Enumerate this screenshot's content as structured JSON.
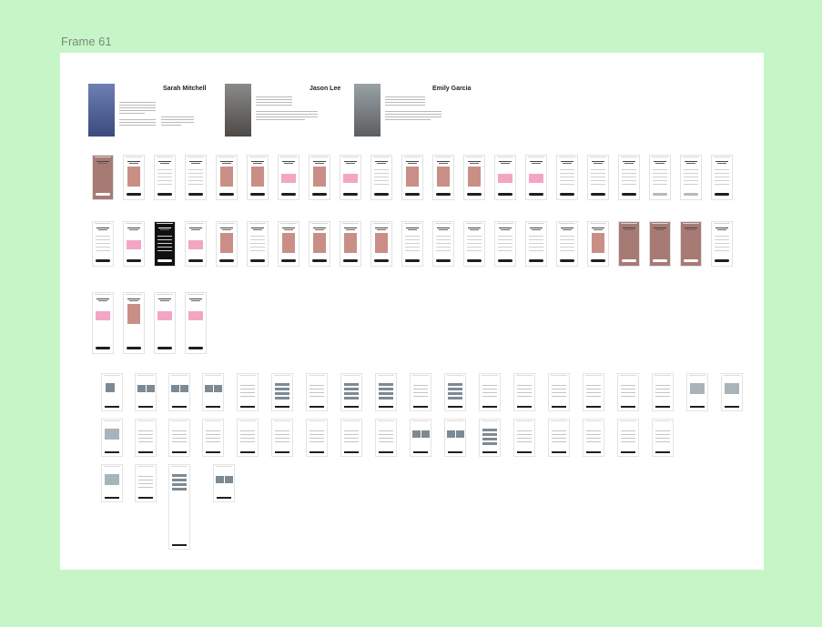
{
  "frame": {
    "title": "Frame 61"
  },
  "personas": [
    {
      "name": "Sarah Mitchell"
    },
    {
      "name": "Jason Lee"
    },
    {
      "name": "Emily Garcia"
    }
  ],
  "colors": {
    "canvas": "#c6f6c8",
    "frame": "#ffffff",
    "accent": "#f04c8a",
    "wireframe": "#7d8a94"
  },
  "wireframe_labels": {
    "a": "Sarah Mitchell",
    "b": "50%",
    "c": "85",
    "d": "90"
  }
}
